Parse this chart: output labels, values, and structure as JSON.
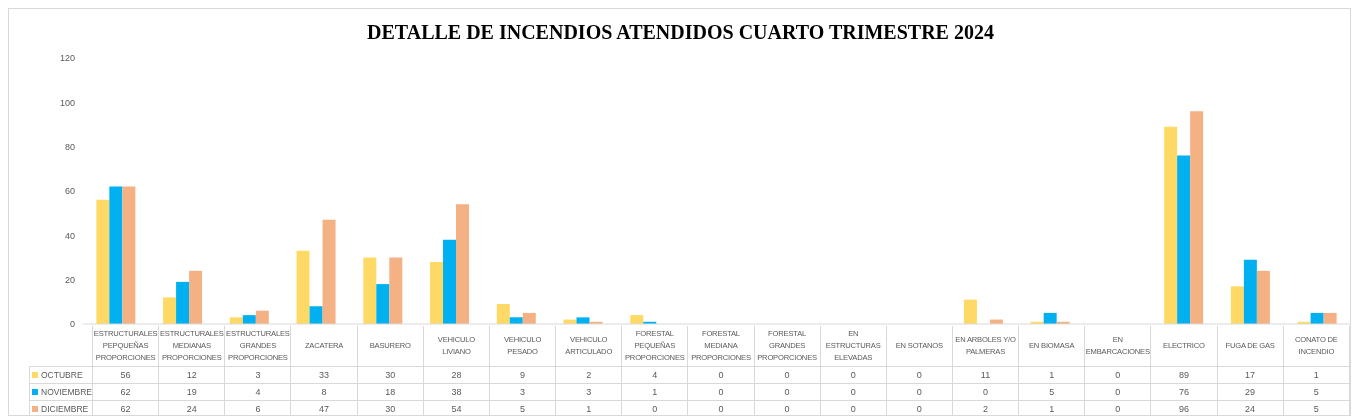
{
  "chart_data": {
    "type": "bar",
    "title": "DETALLE DE INCENDIOS ATENDIDOS CUARTO TRIMESTRE 2024",
    "categories": [
      "ESTRUCTURALES PEPQUEÑAS PROPORCIONES",
      "ESTRUCTURALES MEDIANAS PROPORCIONES",
      "ESTRUCTURALES GRANDES PROPORCIONES",
      "ZACATERA",
      "BASURERO",
      "VEHICULO LIVIANO",
      "VEHICULO PESADO",
      "VEHICULO ARTICULADO",
      "FORESTAL PEQUEÑAS PROPORCIONES",
      "FORESTAL MEDIANA PROPORCIONES",
      "FORESTAL GRANDES PROPORCIONES",
      "EN ESTRUCTURAS ELEVADAS",
      "EN SOTANOS",
      "EN ARBOLES Y/O PALMERAS",
      "EN BIOMASA",
      "EN EMBARCACIONES",
      "ELECTRICO",
      "FUGA DE GAS",
      "CONATO DE INCENDIO"
    ],
    "series": [
      {
        "name": "OCTUBRE",
        "color": "#ffd966",
        "values": [
          56,
          12,
          3,
          33,
          30,
          28,
          9,
          2,
          4,
          0,
          0,
          0,
          0,
          11,
          1,
          0,
          89,
          17,
          1
        ]
      },
      {
        "name": "NOVIEMBRE",
        "color": "#00b0f0",
        "values": [
          62,
          19,
          4,
          8,
          18,
          38,
          3,
          3,
          1,
          0,
          0,
          0,
          0,
          0,
          5,
          0,
          76,
          29,
          5
        ]
      },
      {
        "name": "DICIEMBRE",
        "color": "#f4b183",
        "values": [
          62,
          24,
          6,
          47,
          30,
          54,
          5,
          1,
          0,
          0,
          0,
          0,
          0,
          2,
          1,
          0,
          96,
          24,
          5
        ]
      }
    ],
    "ylim": [
      0,
      120
    ],
    "yticks": [
      0,
      20,
      40,
      60,
      80,
      100,
      120
    ],
    "data_labels": true,
    "legend": "bottom"
  }
}
